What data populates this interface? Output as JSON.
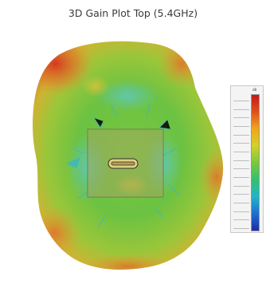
{
  "title": "3D Gain Plot Top (5.4GHz)",
  "chart_data": {
    "type": "heatmap",
    "title": "3D Gain Plot Top (5.4GHz)",
    "legend": {
      "placement": "right",
      "unit": "dB",
      "colormap": [
        "#1d2ca8",
        "#1f6fd0",
        "#22b5c8",
        "#33c06e",
        "#7bc83e",
        "#d3d126",
        "#f0a51c",
        "#e0501c",
        "#c41a1a"
      ],
      "tick_count": 16
    }
  }
}
